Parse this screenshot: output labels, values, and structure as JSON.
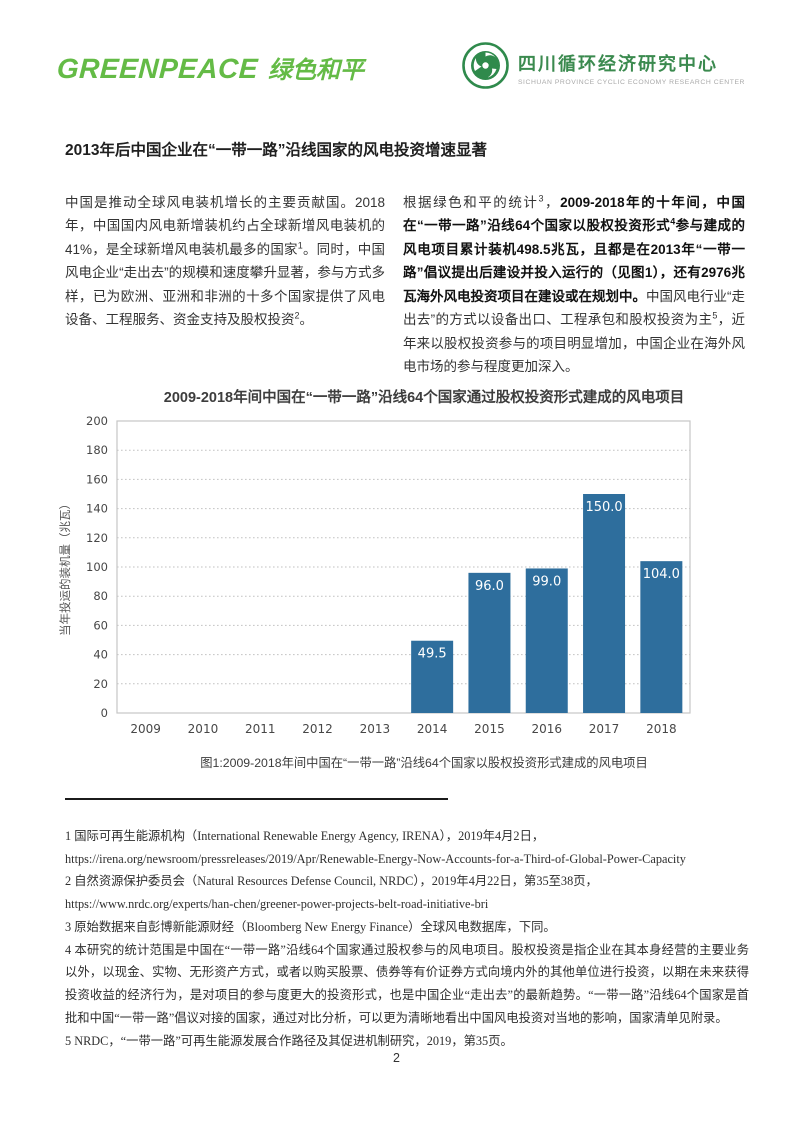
{
  "page": {
    "number": "2"
  },
  "header": {
    "greenpeace_logo": {
      "latin": "GREENPEACE",
      "chinese": "绿色和平",
      "color": "#64bb46"
    },
    "center_logo": {
      "title": "四川循环经济研究中心",
      "subtitle": "SICHUAN PROVINCE CYCLIC ECONOMY RESEARCH CENTER",
      "color": "#3b8a4f"
    }
  },
  "article": {
    "heading": "2013年后中国企业在“一带一路”沿线国家的风电投资增速显著",
    "left_paragraph": [
      {
        "text": "中国是推动全球风电装机增长的主要贡献国。2018年，中国国内风电新增装机约占全球新增风电装机的41%，是全球新增风电装机最多的国家"
      },
      {
        "sup": "1"
      },
      {
        "text": "。同时，中国风电企业“走出去”的规模和速度攀升显著，参与方式多样，已为欧洲、亚洲和非洲的十多个国家提供了风电设备、工程服务、资金支持及股权投资"
      },
      {
        "sup": "2"
      },
      {
        "text": "。"
      }
    ],
    "right_paragraph": [
      {
        "text": "根据绿色和平的统计"
      },
      {
        "sup": "3"
      },
      {
        "text": "，"
      },
      {
        "text": "2009-2018年的十年间，中国在“一带一路”沿线64个国家以股权投资形式",
        "bold": true
      },
      {
        "sup": "4",
        "bold": true
      },
      {
        "text": "参与建成的风电项目累计装机498.5兆瓦，且都是在2013年“一带一路”倡议提出后建设并投入运行的（见图1），还有2976兆瓦海外风电投资项目在建设或在规划中。",
        "bold": true
      },
      {
        "text": "中国风电行业“走出去”的方式以设备出口、工程承包和股权投资为主"
      },
      {
        "sup": "5"
      },
      {
        "text": "，近年来以股权投资参与的项目明显增加，中国企业在海外风电市场的参与程度更加深入。"
      }
    ]
  },
  "chart_data": {
    "type": "bar",
    "title": "2009-2018年间中国在“一带一路”沿线64个国家通过股权投资形式建成的风电项目",
    "categories": [
      "2009",
      "2010",
      "2011",
      "2012",
      "2013",
      "2014",
      "2015",
      "2016",
      "2017",
      "2018"
    ],
    "values": [
      0,
      0,
      0,
      0,
      0,
      49.5,
      96,
      99,
      150,
      104
    ],
    "value_labels": [
      "",
      "",
      "",
      "",
      "",
      "49.5",
      "96.0",
      "99.0",
      "150.0",
      "104.0"
    ],
    "xlabel": "",
    "ylabel": "当年投运的装机量（兆瓦）",
    "ylim": [
      0,
      200
    ],
    "ytick_step": 20,
    "grid": "horizontal-dotted",
    "legend": "none",
    "bar_color": "#2e6e9d",
    "value_label_color": "#ffffff"
  },
  "figure": {
    "caption": "图1:2009-2018年间中国在“一带一路”沿线64个国家以股权投资形式建成的风电项目"
  },
  "footnotes": [
    {
      "lines": [
        "1 国际可再生能源机构（International Renewable Energy Agency, IRENA），2019年4月2日，",
        "https://irena.org/newsroom/pressreleases/2019/Apr/Renewable-Energy-Now-Accounts-for-a-Third-of-Global-Power-Capacity"
      ]
    },
    {
      "lines": [
        "2 自然资源保护委员会（Natural Resources Defense Council, NRDC），2019年4月22日，第35至38页，",
        "https://www.nrdc.org/experts/han-chen/greener-power-projects-belt-road-initiative-bri"
      ]
    },
    {
      "lines": [
        "3 原始数据来自彭博新能源财经（Bloomberg New Energy Finance）全球风电数据库，下同。"
      ]
    },
    {
      "lines": [
        "4 本研究的统计范围是中国在“一带一路”沿线64个国家通过股权参与的风电项目。股权投资是指企业在其本身经营的主要业务以外，以现金、实物、无形资产方式，或者以购买股票、债券等有价证券方式向境内外的其他单位进行投资，以期在未来获得投资收益的经济行为，是对项目的参与度更大的投资形式，也是中国企业“走出去”的最新趋势。“一带一路”沿线64个国家是首批和中国“一带一路”倡议对接的国家，通过对比分析，可以更为清晰地看出中国风电投资对当地的影响，国家清单见附录。"
      ]
    },
    {
      "lines": [
        "5 NRDC，“一带一路”可再生能源发展合作路径及其促进机制研究，2019，第35页。"
      ]
    }
  ]
}
